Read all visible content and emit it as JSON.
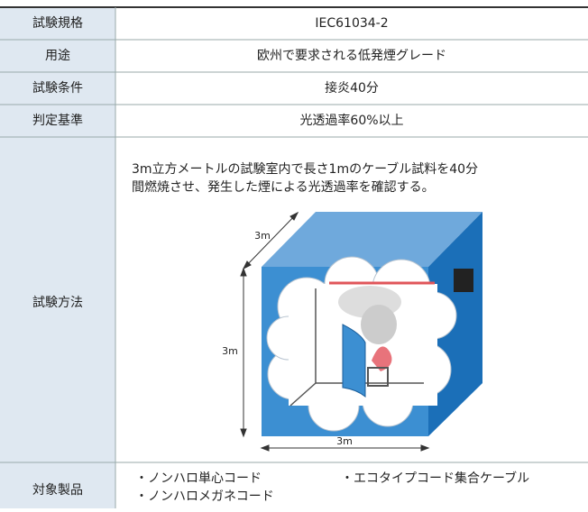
{
  "table": {
    "rows": [
      {
        "label": "試験規格",
        "value": "IEC61034-2"
      },
      {
        "label": "用途",
        "value": "欧州で要求される低発煙グレード"
      },
      {
        "label": "試験条件",
        "value": "接炎40分"
      },
      {
        "label": "判定基準",
        "value": "光透過率60%以上"
      },
      {
        "label": "試験方法",
        "lines": [
          "3m立方メートルの試験室内で長さ1mのケーブル試料を40分",
          "間燃焼させ、発生した煙による光透過率を確認する。"
        ],
        "figure_labels": {
          "depth": "3m",
          "height": "3m",
          "width": "3m"
        }
      },
      {
        "label": "対象製品",
        "items": [
          "・ノンハロ単心コード",
          "・エコタイプコード集合ケーブル",
          "・ノンハロメガネコード"
        ]
      }
    ]
  }
}
